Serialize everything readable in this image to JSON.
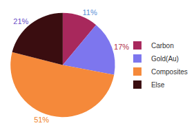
{
  "chart_data": {
    "type": "pie",
    "categories": [
      "Carbon",
      "Gold(Au)",
      "Composites",
      "Else"
    ],
    "values": [
      11,
      17,
      51,
      21
    ],
    "value_labels": [
      "11%",
      "17%",
      "51%",
      "21%"
    ],
    "colors": [
      "#a8285c",
      "#7d76ee",
      "#f5893a",
      "#3a0d10"
    ],
    "data_labels": true,
    "legend": "right"
  }
}
